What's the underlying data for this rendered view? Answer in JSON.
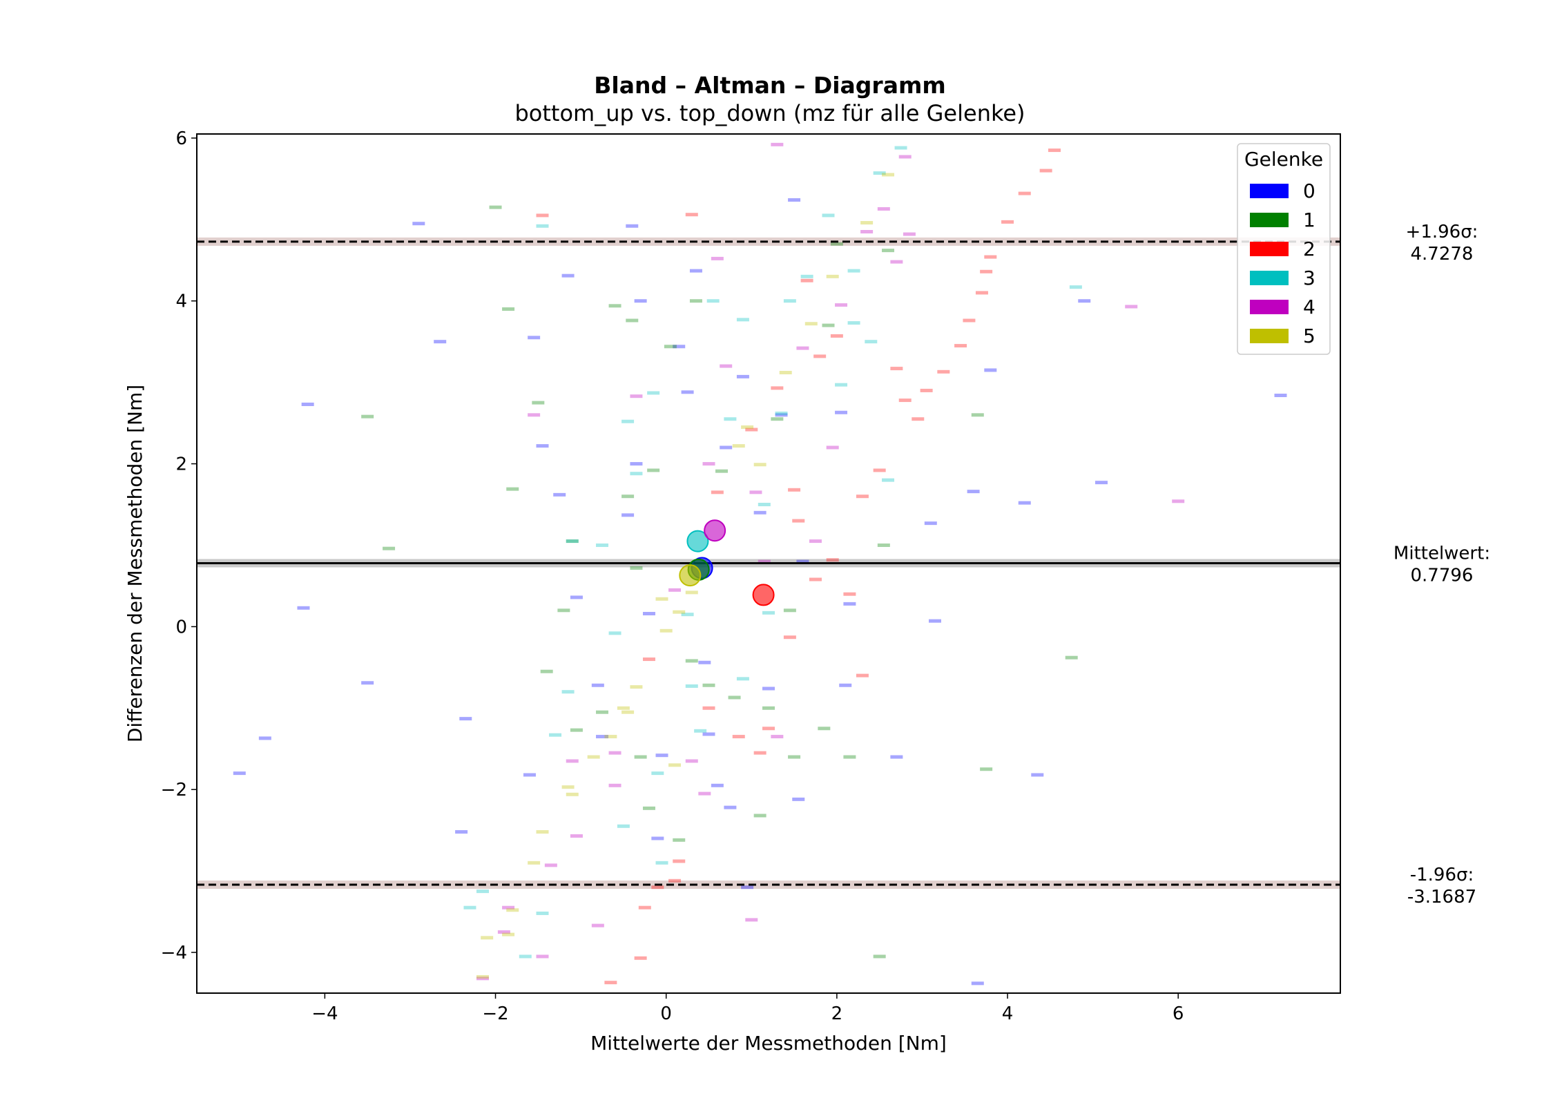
{
  "chart_data": {
    "type": "scatter",
    "title": "Bland – Altman – Diagramm",
    "subtitle": "bottom_up vs. top_down (mz für alle Gelenke)",
    "xlabel": "Mittelwerte der Messmethoden [Nm]",
    "ylabel": "Differenzen der Messmethoden [Nm]",
    "xlim": [
      -5.5,
      7.9
    ],
    "ylim": [
      -4.5,
      6.05
    ],
    "xticks": [
      -4,
      -2,
      0,
      2,
      4,
      6
    ],
    "yticks": [
      -4,
      -2,
      0,
      2,
      4,
      6
    ],
    "xtick_labels": [
      "−4",
      "−2",
      "0",
      "2",
      "4",
      "6"
    ],
    "ytick_labels": [
      "−4",
      "−2",
      "0",
      "2",
      "4",
      "6"
    ],
    "grid": false,
    "legend": {
      "title": "Gelenke",
      "position": "top-right",
      "entries": [
        {
          "label": "0",
          "color": "#0000ff"
        },
        {
          "label": "1",
          "color": "#008000"
        },
        {
          "label": "2",
          "color": "#ff0000"
        },
        {
          "label": "3",
          "color": "#00bfbf"
        },
        {
          "label": "4",
          "color": "#bf00bf"
        },
        {
          "label": "5",
          "color": "#bfbf00"
        }
      ]
    },
    "reference_lines": [
      {
        "name": "upper_loa",
        "value": 4.7278,
        "style": "dashed",
        "label_line1": "+1.96σ:",
        "label_line2": "4.7278"
      },
      {
        "name": "mean",
        "value": 0.7796,
        "style": "solid",
        "label_line1": "Mittelwert:",
        "label_line2": "0.7796"
      },
      {
        "name": "lower_loa",
        "value": -3.1687,
        "style": "dashed",
        "label_line1": "-1.96σ:",
        "label_line2": "-3.1687"
      }
    ],
    "group_means": [
      {
        "group": "0",
        "x": 0.42,
        "y": 0.72
      },
      {
        "group": "1",
        "x": 0.38,
        "y": 0.7
      },
      {
        "group": "2",
        "x": 1.14,
        "y": 0.39
      },
      {
        "group": "3",
        "x": 0.37,
        "y": 1.05
      },
      {
        "group": "4",
        "x": 0.57,
        "y": 1.18
      },
      {
        "group": "5",
        "x": 0.28,
        "y": 0.63
      }
    ],
    "series": [
      {
        "group": "0",
        "points": [
          [
            -5.0,
            -1.8
          ],
          [
            -4.7,
            -1.37
          ],
          [
            -4.2,
            2.73
          ],
          [
            -4.25,
            0.23
          ],
          [
            -3.5,
            -0.69
          ],
          [
            -2.9,
            4.95
          ],
          [
            -2.65,
            3.5
          ],
          [
            -2.4,
            -2.52
          ],
          [
            -2.35,
            -1.13
          ],
          [
            -1.55,
            3.55
          ],
          [
            -1.45,
            2.22
          ],
          [
            -1.25,
            1.62
          ],
          [
            -1.15,
            4.31
          ],
          [
            -1.05,
            0.36
          ],
          [
            -0.75,
            -1.35
          ],
          [
            -0.4,
            4.92
          ],
          [
            -0.3,
            4.0
          ],
          [
            -0.35,
            2.0
          ],
          [
            -0.2,
            0.16
          ],
          [
            -0.1,
            -2.6
          ],
          [
            0.15,
            3.44
          ],
          [
            0.35,
            4.37
          ],
          [
            0.45,
            -0.44
          ],
          [
            0.6,
            -1.95
          ],
          [
            0.75,
            -2.22
          ],
          [
            0.9,
            3.07
          ],
          [
            1.1,
            1.4
          ],
          [
            1.35,
            2.6
          ],
          [
            1.5,
            5.24
          ],
          [
            1.55,
            -2.12
          ],
          [
            2.05,
            2.63
          ],
          [
            2.1,
            -0.72
          ],
          [
            2.15,
            0.28
          ],
          [
            2.7,
            -1.6
          ],
          [
            3.1,
            1.27
          ],
          [
            3.15,
            0.07
          ],
          [
            3.6,
            1.66
          ],
          [
            3.65,
            -4.38
          ],
          [
            3.8,
            3.15
          ],
          [
            4.2,
            1.52
          ],
          [
            4.35,
            -1.82
          ],
          [
            4.9,
            4.0
          ],
          [
            5.1,
            1.77
          ],
          [
            7.2,
            2.84
          ],
          [
            -0.45,
            1.37
          ],
          [
            0.7,
            2.2
          ],
          [
            -0.05,
            -1.58
          ],
          [
            1.2,
            -0.76
          ],
          [
            0.95,
            -3.2
          ],
          [
            -0.8,
            -0.72
          ],
          [
            0.5,
            -1.32
          ],
          [
            1.6,
            0.8
          ],
          [
            -1.6,
            -1.82
          ],
          [
            0.25,
            2.88
          ]
        ]
      },
      {
        "group": "1",
        "points": [
          [
            -3.25,
            0.96
          ],
          [
            -3.5,
            2.58
          ],
          [
            -2.0,
            5.15
          ],
          [
            -1.85,
            3.9
          ],
          [
            -1.8,
            1.69
          ],
          [
            -1.5,
            2.75
          ],
          [
            -1.4,
            -0.55
          ],
          [
            -1.2,
            0.2
          ],
          [
            -1.1,
            1.05
          ],
          [
            -1.05,
            -1.27
          ],
          [
            -0.6,
            3.94
          ],
          [
            -0.4,
            3.76
          ],
          [
            -0.45,
            1.6
          ],
          [
            -0.3,
            -1.6
          ],
          [
            -0.15,
            1.92
          ],
          [
            -0.2,
            -2.23
          ],
          [
            0.05,
            3.44
          ],
          [
            0.35,
            4.0
          ],
          [
            0.5,
            -0.72
          ],
          [
            0.65,
            1.91
          ],
          [
            0.8,
            -0.87
          ],
          [
            1.1,
            -2.32
          ],
          [
            1.2,
            -1.0
          ],
          [
            1.45,
            0.2
          ],
          [
            1.5,
            -1.6
          ],
          [
            1.9,
            3.7
          ],
          [
            1.85,
            -1.25
          ],
          [
            2.15,
            -1.6
          ],
          [
            2.55,
            1.0
          ],
          [
            2.6,
            4.62
          ],
          [
            3.65,
            2.6
          ],
          [
            3.75,
            -1.75
          ],
          [
            4.75,
            -0.38
          ],
          [
            2.5,
            -4.05
          ],
          [
            0.3,
            -0.42
          ],
          [
            1.3,
            2.55
          ],
          [
            -0.35,
            0.72
          ],
          [
            0.15,
            -2.62
          ],
          [
            2.0,
            4.7
          ],
          [
            -0.75,
            -1.05
          ]
        ]
      },
      {
        "group": "2",
        "points": [
          [
            -1.45,
            5.05
          ],
          [
            0.3,
            5.06
          ],
          [
            1.0,
            2.42
          ],
          [
            1.5,
            1.68
          ],
          [
            1.55,
            1.3
          ],
          [
            1.65,
            4.25
          ],
          [
            1.8,
            3.32
          ],
          [
            2.0,
            3.57
          ],
          [
            2.3,
            1.6
          ],
          [
            2.5,
            1.92
          ],
          [
            2.7,
            3.17
          ],
          [
            2.8,
            2.78
          ],
          [
            2.95,
            2.55
          ],
          [
            3.05,
            2.9
          ],
          [
            3.25,
            3.13
          ],
          [
            3.45,
            3.45
          ],
          [
            3.55,
            3.76
          ],
          [
            3.7,
            4.1
          ],
          [
            3.75,
            4.36
          ],
          [
            3.8,
            4.54
          ],
          [
            4.0,
            4.97
          ],
          [
            4.2,
            5.32
          ],
          [
            4.45,
            5.6
          ],
          [
            4.55,
            5.85
          ],
          [
            0.85,
            -1.35
          ],
          [
            1.2,
            -1.25
          ],
          [
            1.1,
            -1.55
          ],
          [
            -0.25,
            -3.45
          ],
          [
            -0.3,
            -4.07
          ],
          [
            -0.65,
            -4.37
          ],
          [
            -0.1,
            -3.2
          ],
          [
            0.1,
            -3.12
          ],
          [
            0.15,
            -2.88
          ],
          [
            1.45,
            -0.13
          ],
          [
            0.6,
            1.65
          ],
          [
            1.75,
            0.58
          ],
          [
            1.95,
            0.82
          ],
          [
            2.15,
            0.4
          ],
          [
            2.3,
            -0.6
          ],
          [
            1.3,
            2.93
          ],
          [
            0.5,
            -1.0
          ],
          [
            -0.2,
            -0.4
          ]
        ]
      },
      {
        "group": "3",
        "points": [
          [
            -2.15,
            -3.25
          ],
          [
            -2.3,
            -3.45
          ],
          [
            -1.45,
            4.92
          ],
          [
            -1.45,
            -3.52
          ],
          [
            -1.3,
            -1.33
          ],
          [
            -1.15,
            -0.8
          ],
          [
            -1.1,
            1.05
          ],
          [
            -0.75,
            1.0
          ],
          [
            -0.5,
            -2.45
          ],
          [
            -0.45,
            2.52
          ],
          [
            -0.35,
            1.88
          ],
          [
            -0.15,
            2.87
          ],
          [
            -0.1,
            -1.8
          ],
          [
            0.25,
            0.15
          ],
          [
            0.4,
            -1.28
          ],
          [
            0.55,
            4.0
          ],
          [
            0.75,
            2.55
          ],
          [
            0.9,
            3.77
          ],
          [
            1.15,
            1.5
          ],
          [
            1.35,
            2.62
          ],
          [
            1.45,
            4.0
          ],
          [
            1.65,
            4.3
          ],
          [
            1.9,
            5.05
          ],
          [
            2.05,
            2.97
          ],
          [
            2.2,
            3.73
          ],
          [
            2.2,
            4.37
          ],
          [
            2.4,
            3.5
          ],
          [
            2.5,
            5.57
          ],
          [
            2.6,
            1.8
          ],
          [
            2.75,
            5.88
          ],
          [
            4.8,
            4.17
          ],
          [
            -0.05,
            -2.9
          ],
          [
            1.2,
            0.17
          ],
          [
            0.3,
            -0.73
          ],
          [
            -0.6,
            -0.08
          ],
          [
            0.9,
            -0.64
          ],
          [
            -1.65,
            -4.05
          ]
        ]
      },
      {
        "group": "4",
        "points": [
          [
            -1.9,
            -3.75
          ],
          [
            -1.85,
            -3.45
          ],
          [
            -1.55,
            2.6
          ],
          [
            -1.35,
            -2.93
          ],
          [
            -1.1,
            -1.65
          ],
          [
            -1.05,
            -2.57
          ],
          [
            -0.8,
            -3.67
          ],
          [
            -0.6,
            -1.95
          ],
          [
            -0.35,
            2.83
          ],
          [
            0.3,
            -1.65
          ],
          [
            0.5,
            2.0
          ],
          [
            0.6,
            4.52
          ],
          [
            0.7,
            3.2
          ],
          [
            1.0,
            -3.6
          ],
          [
            1.05,
            1.65
          ],
          [
            1.3,
            -1.35
          ],
          [
            1.6,
            3.42
          ],
          [
            1.75,
            1.05
          ],
          [
            1.95,
            2.2
          ],
          [
            2.05,
            3.95
          ],
          [
            2.35,
            4.85
          ],
          [
            2.55,
            5.13
          ],
          [
            2.7,
            4.48
          ],
          [
            2.8,
            5.77
          ],
          [
            2.85,
            4.82
          ],
          [
            1.3,
            5.92
          ],
          [
            5.45,
            3.93
          ],
          [
            6.0,
            1.54
          ],
          [
            -2.15,
            -4.32
          ],
          [
            -1.45,
            -4.05
          ],
          [
            -0.6,
            -1.55
          ],
          [
            0.1,
            0.45
          ],
          [
            1.15,
            0.8
          ],
          [
            0.45,
            -2.05
          ]
        ]
      },
      {
        "group": "5",
        "points": [
          [
            -2.15,
            -4.3
          ],
          [
            -2.1,
            -3.82
          ],
          [
            -1.85,
            -3.78
          ],
          [
            -1.8,
            -3.48
          ],
          [
            -1.55,
            -2.9
          ],
          [
            -1.45,
            -2.52
          ],
          [
            -1.15,
            -1.97
          ],
          [
            -1.1,
            -2.06
          ],
          [
            -0.85,
            -1.6
          ],
          [
            -0.65,
            -1.35
          ],
          [
            -0.45,
            -1.05
          ],
          [
            -0.35,
            -0.74
          ],
          [
            -0.05,
            0.34
          ],
          [
            0.0,
            -0.05
          ],
          [
            0.3,
            0.42
          ],
          [
            0.85,
            2.22
          ],
          [
            1.1,
            1.99
          ],
          [
            1.7,
            3.72
          ],
          [
            1.95,
            4.3
          ],
          [
            2.35,
            4.96
          ],
          [
            2.6,
            5.55
          ],
          [
            0.95,
            2.45
          ],
          [
            -0.5,
            -1.0
          ],
          [
            0.15,
            0.18
          ],
          [
            0.1,
            -1.7
          ],
          [
            1.4,
            3.12
          ]
        ]
      }
    ]
  }
}
